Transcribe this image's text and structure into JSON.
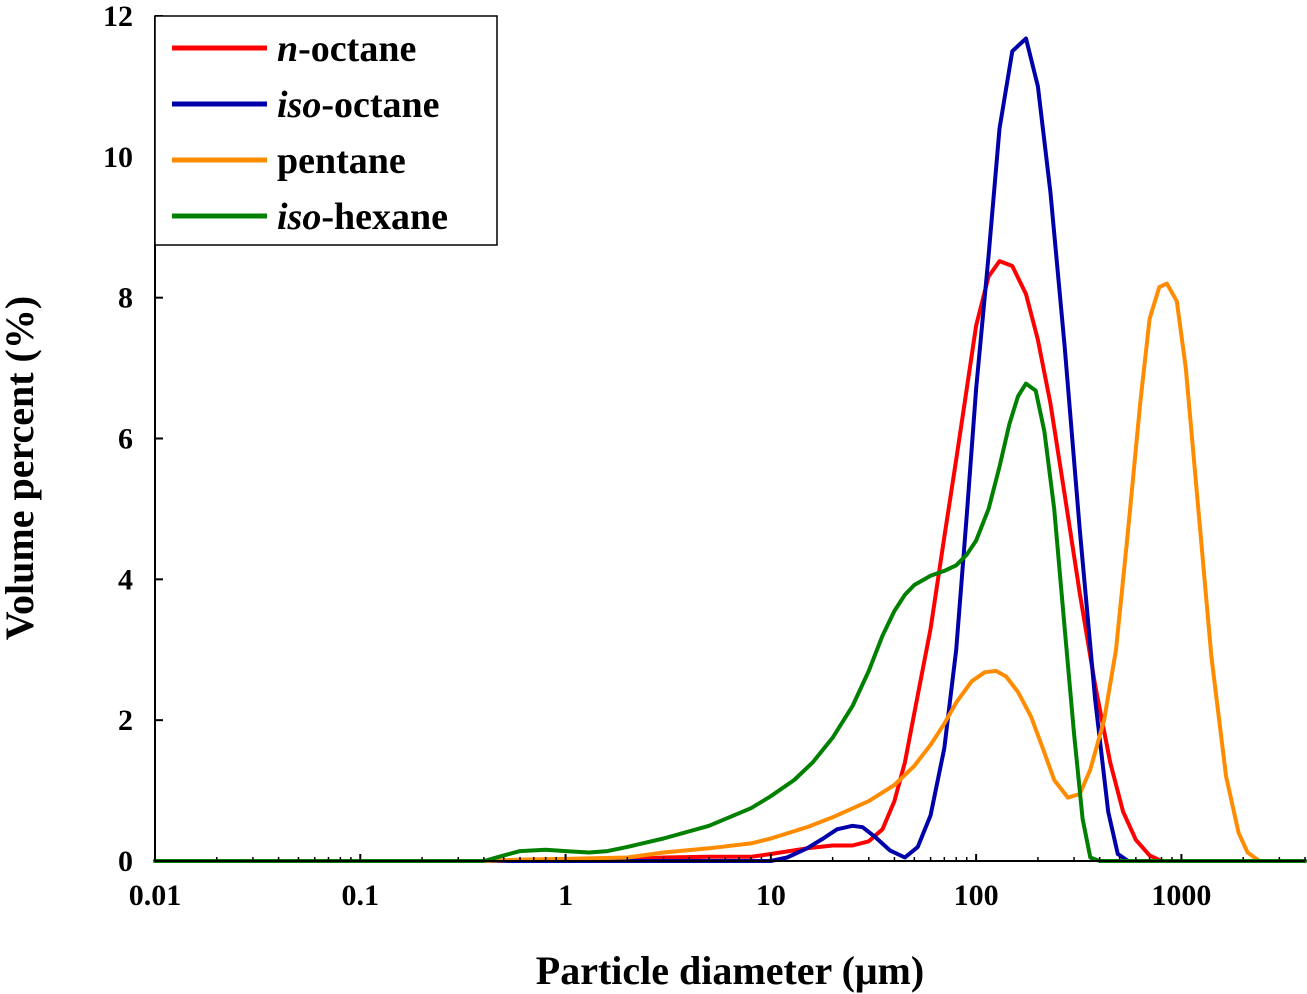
{
  "chart_data": {
    "type": "line",
    "xlabel": "Particle diameter (μm)",
    "ylabel": "Volume percent (%)",
    "x_scale": "log",
    "xlim": [
      0.01,
      4000
    ],
    "ylim": [
      0,
      12
    ],
    "x_ticks": [
      {
        "value": 0.01,
        "label": "0.01"
      },
      {
        "value": 0.1,
        "label": "0.1"
      },
      {
        "value": 1,
        "label": "1"
      },
      {
        "value": 10,
        "label": "10"
      },
      {
        "value": 100,
        "label": "100"
      },
      {
        "value": 1000,
        "label": "1000"
      }
    ],
    "y_ticks": [
      {
        "value": 0,
        "label": "0"
      },
      {
        "value": 2,
        "label": "2"
      },
      {
        "value": 4,
        "label": "4"
      },
      {
        "value": 6,
        "label": "6"
      },
      {
        "value": 8,
        "label": "8"
      },
      {
        "value": 10,
        "label": "10"
      },
      {
        "value": 12,
        "label": "12"
      }
    ],
    "grid": false,
    "legend": {
      "placement": "top-left",
      "entries": [
        {
          "prefix": "n",
          "suffix": "-octane",
          "color": "#ff0000"
        },
        {
          "prefix": "iso",
          "suffix": "-octane",
          "color": "#0000aa"
        },
        {
          "prefix": "",
          "suffix": "pentane",
          "color": "#ff8c00"
        },
        {
          "prefix": "iso",
          "suffix": "-hexane",
          "color": "#008000"
        }
      ]
    },
    "series": [
      {
        "name": "n-octane",
        "color": "#ff0000",
        "points": [
          [
            0.01,
            0
          ],
          [
            0.4,
            0
          ],
          [
            2,
            0.02
          ],
          [
            3,
            0.05
          ],
          [
            5,
            0.06
          ],
          [
            8,
            0.06
          ],
          [
            10,
            0.1
          ],
          [
            15,
            0.18
          ],
          [
            20,
            0.22
          ],
          [
            25,
            0.22
          ],
          [
            30,
            0.28
          ],
          [
            35,
            0.45
          ],
          [
            40,
            0.85
          ],
          [
            45,
            1.4
          ],
          [
            50,
            2.1
          ],
          [
            60,
            3.3
          ],
          [
            70,
            4.6
          ],
          [
            80,
            5.7
          ],
          [
            90,
            6.7
          ],
          [
            100,
            7.6
          ],
          [
            115,
            8.3
          ],
          [
            130,
            8.52
          ],
          [
            150,
            8.45
          ],
          [
            175,
            8.05
          ],
          [
            200,
            7.4
          ],
          [
            230,
            6.5
          ],
          [
            270,
            5.2
          ],
          [
            320,
            3.8
          ],
          [
            380,
            2.5
          ],
          [
            450,
            1.4
          ],
          [
            520,
            0.7
          ],
          [
            600,
            0.3
          ],
          [
            700,
            0.08
          ],
          [
            800,
            0
          ],
          [
            4000,
            0
          ]
        ]
      },
      {
        "name": "iso-octane",
        "color": "#0000aa",
        "points": [
          [
            0.01,
            0
          ],
          [
            10,
            0
          ],
          [
            12,
            0.05
          ],
          [
            15,
            0.18
          ],
          [
            18,
            0.32
          ],
          [
            21,
            0.45
          ],
          [
            25,
            0.5
          ],
          [
            28,
            0.48
          ],
          [
            32,
            0.35
          ],
          [
            38,
            0.15
          ],
          [
            45,
            0.05
          ],
          [
            52,
            0.2
          ],
          [
            60,
            0.65
          ],
          [
            70,
            1.6
          ],
          [
            80,
            3.0
          ],
          [
            90,
            4.9
          ],
          [
            100,
            6.7
          ],
          [
            115,
            8.6
          ],
          [
            130,
            10.4
          ],
          [
            150,
            11.5
          ],
          [
            175,
            11.68
          ],
          [
            200,
            11.0
          ],
          [
            230,
            9.5
          ],
          [
            270,
            7.3
          ],
          [
            320,
            4.7
          ],
          [
            380,
            2.3
          ],
          [
            440,
            0.7
          ],
          [
            490,
            0.1
          ],
          [
            550,
            0
          ],
          [
            4000,
            0
          ]
        ]
      },
      {
        "name": "pentane",
        "color": "#ff8c00",
        "points": [
          [
            0.01,
            0
          ],
          [
            0.4,
            0
          ],
          [
            0.6,
            0.02
          ],
          [
            1,
            0.03
          ],
          [
            2,
            0.05
          ],
          [
            3,
            0.12
          ],
          [
            5,
            0.18
          ],
          [
            8,
            0.25
          ],
          [
            10,
            0.32
          ],
          [
            15,
            0.48
          ],
          [
            20,
            0.62
          ],
          [
            30,
            0.85
          ],
          [
            40,
            1.08
          ],
          [
            50,
            1.35
          ],
          [
            60,
            1.65
          ],
          [
            70,
            1.95
          ],
          [
            80,
            2.25
          ],
          [
            95,
            2.55
          ],
          [
            110,
            2.68
          ],
          [
            125,
            2.7
          ],
          [
            140,
            2.62
          ],
          [
            160,
            2.4
          ],
          [
            185,
            2.05
          ],
          [
            210,
            1.62
          ],
          [
            240,
            1.15
          ],
          [
            280,
            0.9
          ],
          [
            320,
            0.95
          ],
          [
            360,
            1.3
          ],
          [
            420,
            2.0
          ],
          [
            480,
            3.0
          ],
          [
            550,
            4.7
          ],
          [
            630,
            6.5
          ],
          [
            700,
            7.7
          ],
          [
            780,
            8.15
          ],
          [
            850,
            8.2
          ],
          [
            950,
            7.95
          ],
          [
            1050,
            7.0
          ],
          [
            1200,
            5.1
          ],
          [
            1400,
            2.9
          ],
          [
            1650,
            1.2
          ],
          [
            1900,
            0.4
          ],
          [
            2100,
            0.12
          ],
          [
            2400,
            0
          ],
          [
            4000,
            0
          ]
        ]
      },
      {
        "name": "iso-hexane",
        "color": "#008000",
        "points": [
          [
            0.01,
            0
          ],
          [
            0.4,
            0
          ],
          [
            0.5,
            0.08
          ],
          [
            0.6,
            0.14
          ],
          [
            0.8,
            0.16
          ],
          [
            1,
            0.14
          ],
          [
            1.3,
            0.12
          ],
          [
            1.6,
            0.14
          ],
          [
            2,
            0.2
          ],
          [
            3,
            0.32
          ],
          [
            5,
            0.5
          ],
          [
            8,
            0.75
          ],
          [
            10,
            0.92
          ],
          [
            13,
            1.15
          ],
          [
            16,
            1.4
          ],
          [
            20,
            1.75
          ],
          [
            25,
            2.2
          ],
          [
            30,
            2.7
          ],
          [
            35,
            3.2
          ],
          [
            40,
            3.55
          ],
          [
            45,
            3.78
          ],
          [
            50,
            3.92
          ],
          [
            60,
            4.05
          ],
          [
            70,
            4.12
          ],
          [
            80,
            4.2
          ],
          [
            90,
            4.35
          ],
          [
            100,
            4.55
          ],
          [
            115,
            5.0
          ],
          [
            130,
            5.6
          ],
          [
            145,
            6.2
          ],
          [
            160,
            6.6
          ],
          [
            175,
            6.78
          ],
          [
            195,
            6.68
          ],
          [
            215,
            6.1
          ],
          [
            240,
            5.0
          ],
          [
            270,
            3.3
          ],
          [
            300,
            1.8
          ],
          [
            330,
            0.6
          ],
          [
            360,
            0.05
          ],
          [
            400,
            0
          ],
          [
            4000,
            0
          ]
        ]
      }
    ]
  }
}
